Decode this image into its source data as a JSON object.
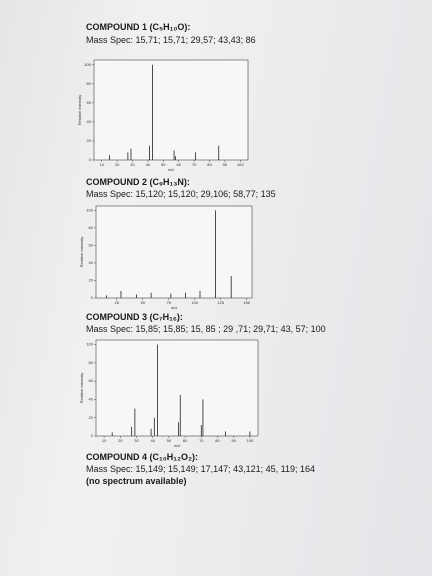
{
  "compounds": [
    {
      "title": "COMPOUND 1 (C₅H₁₀O):",
      "mass_spec": "Mass Spec: 15,71; 15,71; 29,57; 43,43; 86"
    },
    {
      "title": "COMPOUND 2 (C₉H₁₃N):",
      "mass_spec": "Mass Spec: 15,120; 15,120; 29,106; 58,77; 135"
    },
    {
      "title": "COMPOUND 3 (C₇H₁₆):",
      "mass_spec": "Mass Spec: 15,85; 15,85; 15, 85 ; 29 ,71; 29,71; 43, 57; 100"
    },
    {
      "title": "COMPOUND 4 (C₁₀H₁₂O₂):",
      "mass_spec": "Mass Spec: 15,149; 15,149; 17,147; 43,121; 45, 119; 164",
      "note": "(no spectrum available)"
    }
  ],
  "chart_data": [
    {
      "type": "bar",
      "x": [
        15,
        27,
        29,
        41,
        43,
        57,
        58,
        71,
        86
      ],
      "values": [
        5,
        8,
        12,
        15,
        100,
        10,
        4,
        8,
        15
      ],
      "xlim": [
        5,
        105
      ],
      "xticks": [
        10,
        20,
        30,
        40,
        50,
        60,
        70,
        80,
        90,
        100
      ],
      "ylim": [
        0,
        105
      ],
      "yticks": [
        0,
        20,
        40,
        60,
        80,
        100
      ],
      "y_label": "Relative Intensity",
      "x_label": "m/z",
      "color": "#222222"
    },
    {
      "type": "bar",
      "x": [
        15,
        29,
        44,
        58,
        77,
        91,
        105,
        120,
        135
      ],
      "values": [
        3,
        8,
        4,
        6,
        5,
        6,
        8,
        100,
        25
      ],
      "xlim": [
        5,
        155
      ],
      "xticks": [
        25,
        50,
        75,
        100,
        125,
        150
      ],
      "ylim": [
        0,
        105
      ],
      "yticks": [
        0,
        20,
        40,
        60,
        80,
        100
      ],
      "y_label": "Relative Intensity",
      "x_label": "m/z",
      "color": "#222222"
    },
    {
      "type": "bar",
      "x": [
        15,
        27,
        29,
        39,
        41,
        43,
        56,
        57,
        70,
        71,
        85,
        100
      ],
      "values": [
        4,
        10,
        30,
        8,
        20,
        100,
        15,
        45,
        12,
        40,
        5,
        5
      ],
      "xlim": [
        5,
        105
      ],
      "xticks": [
        10,
        20,
        30,
        40,
        50,
        60,
        70,
        80,
        90,
        100
      ],
      "ylim": [
        0,
        105
      ],
      "yticks": [
        0,
        20,
        40,
        60,
        80,
        100
      ],
      "y_label": "Relative Intensity",
      "x_label": "m/z",
      "color": "#222222"
    }
  ]
}
